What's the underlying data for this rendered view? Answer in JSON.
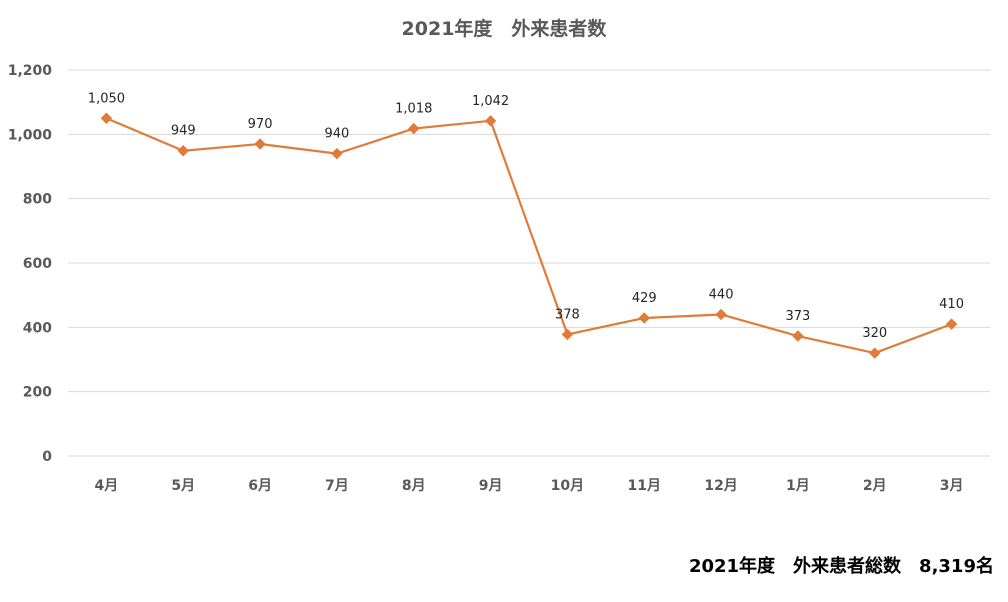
{
  "colors": {
    "series": "#E07B39",
    "grid": "#D9D9D9",
    "axis_text": "#595959",
    "label_text": "#262626"
  },
  "chart_data": {
    "type": "line",
    "title": "2021年度　外来患者数",
    "xlabel": "",
    "ylabel": "",
    "categories": [
      "4月",
      "5月",
      "6月",
      "7月",
      "8月",
      "9月",
      "10月",
      "11月",
      "12月",
      "1月",
      "2月",
      "3月"
    ],
    "series": [
      {
        "values": [
          1050,
          949,
          970,
          940,
          1018,
          1042,
          378,
          429,
          440,
          373,
          320,
          410
        ],
        "labels": [
          "1,050",
          "949",
          "970",
          "940",
          "1,018",
          "1,042",
          "378",
          "429",
          "440",
          "373",
          "320",
          "410"
        ],
        "marker": "diamond"
      }
    ],
    "ylim": [
      0,
      1200
    ],
    "yticks": [
      0,
      200,
      400,
      600,
      800,
      1000,
      1200
    ],
    "ytick_labels": [
      "0",
      "200",
      "400",
      "600",
      "800",
      "1,000",
      "1,200"
    ],
    "grid": true,
    "legend": "none"
  },
  "footer": {
    "total_text": "2021年度　外来患者総数　8,319名"
  }
}
